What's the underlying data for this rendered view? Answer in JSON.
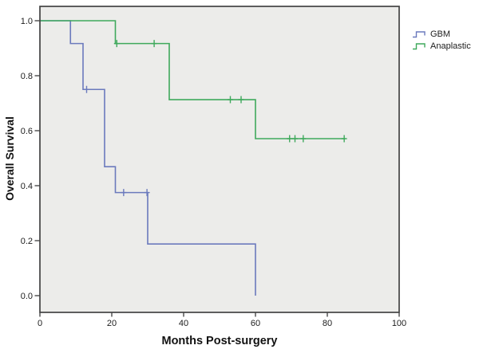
{
  "figure": {
    "background": "#ffffff",
    "plot_background": "#ECECEA",
    "border_color": "#434343",
    "tick_color": "#2b2b2b"
  },
  "axes": {
    "x": {
      "title": "Months Post-surgery",
      "tick_values": [
        0,
        20,
        40,
        60,
        80,
        100
      ],
      "tick_labels": [
        "0",
        "20",
        "40",
        "60",
        "80",
        "100"
      ]
    },
    "y": {
      "title": "Overall Survival",
      "tick_values": [
        1.0,
        0.8,
        0.6,
        0.4,
        0.2,
        0.0
      ],
      "tick_labels": [
        "1.0",
        "0.8",
        "0.6",
        "0.4",
        "0.2",
        "0.0"
      ]
    }
  },
  "legend": {
    "items": [
      {
        "label": "GBM",
        "color": "#6b7abd"
      },
      {
        "label": "Anaplastic",
        "color": "#3fa95c"
      }
    ]
  },
  "chart_data": {
    "type": "line",
    "subtype": "kaplan-meier-step",
    "title": "",
    "xlabel": "Months Post-surgery",
    "ylabel": "Overall Survival",
    "xlim": [
      0,
      100
    ],
    "ylim": [
      0.0,
      1.0
    ],
    "grid": false,
    "legend_position": "top-right-outside",
    "series": [
      {
        "name": "GBM",
        "color": "#6b7abd",
        "steps": [
          [
            0,
            1.0
          ],
          [
            8.5,
            1.0
          ],
          [
            8.5,
            0.917
          ],
          [
            12,
            0.917
          ],
          [
            12,
            0.75
          ],
          [
            18,
            0.75
          ],
          [
            18,
            0.469
          ],
          [
            21,
            0.469
          ],
          [
            21,
            0.375
          ],
          [
            30,
            0.375
          ],
          [
            30,
            0.188
          ],
          [
            60,
            0.188
          ],
          [
            60,
            0.0
          ]
        ],
        "censored": [
          [
            13,
            0.75
          ],
          [
            23.3,
            0.375
          ],
          [
            29.8,
            0.375
          ]
        ]
      },
      {
        "name": "Anaplastic",
        "color": "#3fa95c",
        "steps": [
          [
            0,
            1.0
          ],
          [
            21,
            1.0
          ],
          [
            21,
            0.917
          ],
          [
            36,
            0.917
          ],
          [
            36,
            0.713
          ],
          [
            60,
            0.713
          ],
          [
            60,
            0.571
          ],
          [
            85,
            0.571
          ]
        ],
        "censored": [
          [
            21.4,
            0.917
          ],
          [
            31.8,
            0.917
          ],
          [
            53,
            0.713
          ],
          [
            56,
            0.713
          ],
          [
            69.5,
            0.571
          ],
          [
            71,
            0.571
          ],
          [
            73.3,
            0.571
          ],
          [
            84.7,
            0.571
          ]
        ]
      }
    ]
  }
}
